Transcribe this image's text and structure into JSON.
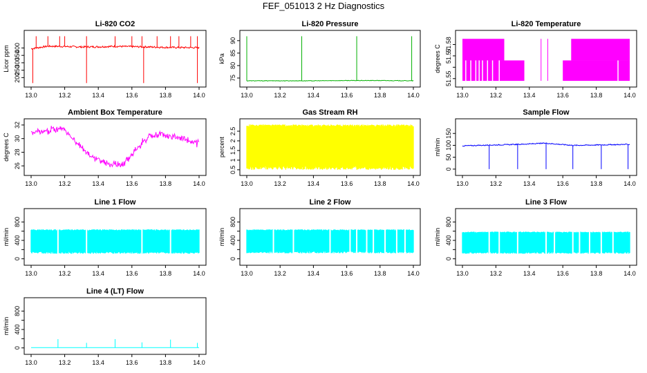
{
  "figure_title": "FEF_051013  2 Hz Diagnostics",
  "chart_data": [
    {
      "id": "co2",
      "type": "line",
      "title": "Li-820 CO2",
      "ylabel": "Licor ppm",
      "color": "#ff0000",
      "xlim": [
        13.0,
        14.0
      ],
      "ylim": [
        155,
        500
      ],
      "x_ticks": [
        "13.0",
        "13.2",
        "13.4",
        "13.6",
        "13.8",
        "14.0"
      ],
      "y_ticks": [
        200,
        250,
        300,
        350,
        400
      ],
      "series": [
        {
          "name": "",
          "x": [
            13.0,
            13.1,
            13.2,
            13.3,
            13.4,
            13.5,
            13.6,
            13.7,
            13.8,
            13.9,
            14.0
          ],
          "values": [
            395,
            412,
            410,
            407,
            408,
            411,
            409,
            407,
            404,
            403,
            402
          ]
        }
      ],
      "spikes_up": [
        13.03,
        13.1,
        13.17,
        13.2,
        13.33,
        13.5,
        13.6,
        13.66,
        13.75,
        13.83,
        13.88,
        13.95,
        13.99
      ],
      "spikes_down": [
        13.01,
        13.33,
        13.67,
        13.99
      ]
    },
    {
      "id": "pressure",
      "type": "line",
      "title": "Li-820 Pressure",
      "ylabel": "kPa",
      "color": "#00b000",
      "xlim": [
        13.0,
        14.0
      ],
      "ylim": [
        72.5,
        93
      ],
      "x_ticks": [
        "13.0",
        "13.2",
        "13.4",
        "13.6",
        "13.8",
        "14.0"
      ],
      "y_ticks": [
        75,
        80,
        85,
        90
      ],
      "series": [
        {
          "name": "",
          "x": [
            13.0,
            13.2,
            13.4,
            13.6,
            13.8,
            14.0
          ],
          "values": [
            73.9,
            73.9,
            73.9,
            74.0,
            74.0,
            73.9
          ]
        }
      ],
      "spikes_up": [
        13.0,
        13.33,
        13.66,
        13.99
      ]
    },
    {
      "id": "temp",
      "type": "line",
      "title": "Li-820 Temperature",
      "ylabel": "degrees C",
      "color": "#ff00ff",
      "xlim": [
        13.0,
        14.0
      ],
      "ylim": [
        51.545,
        51.59
      ],
      "x_ticks": [
        "13.0",
        "13.2",
        "13.4",
        "13.6",
        "13.8",
        "14.0"
      ],
      "y_ticks": [
        51.55,
        51.56,
        51.57,
        51.58
      ],
      "y_tick_labels": [
        "51.55",
        "",
        "51.57",
        "51.58"
      ],
      "band_hi": [
        [
          13.0,
          13.25
        ],
        [
          13.65,
          14.0
        ]
      ],
      "band_lo": [
        [
          13.0,
          13.37
        ],
        [
          13.6,
          14.0
        ]
      ]
    },
    {
      "id": "ambient",
      "type": "line",
      "title": "Ambient Box Temperature",
      "ylabel": "degrees C",
      "color": "#ff00ff",
      "xlim": [
        13.0,
        14.0
      ],
      "ylim": [
        25.0,
        32.5
      ],
      "x_ticks": [
        "13.0",
        "13.2",
        "13.4",
        "13.6",
        "13.8",
        "14.0"
      ],
      "y_ticks": [
        26,
        28,
        30,
        32
      ],
      "series": [
        {
          "name": "",
          "x": [
            13.0,
            13.1,
            13.18,
            13.25,
            13.35,
            13.45,
            13.55,
            13.62,
            13.7,
            13.78,
            13.9,
            14.0
          ],
          "values": [
            31.3,
            31.4,
            31.9,
            30.3,
            27.8,
            26.6,
            26.5,
            28.7,
            30.6,
            30.9,
            30.3,
            29.5
          ]
        }
      ]
    },
    {
      "id": "rh",
      "type": "line",
      "title": "Gas Stream RH",
      "ylabel": "percent",
      "color": "#ffff00",
      "xlim": [
        13.0,
        14.0
      ],
      "ylim": [
        0.35,
        3.0
      ],
      "x_ticks": [
        "13.0",
        "13.2",
        "13.4",
        "13.6",
        "13.8",
        "14.0"
      ],
      "y_ticks": [
        0.5,
        1.0,
        1.5,
        2.0,
        2.5
      ],
      "y_tick_labels": [
        "0.5",
        "1",
        "1.5",
        "2",
        "2.5"
      ],
      "band": [
        0.5,
        2.85
      ]
    },
    {
      "id": "sample",
      "type": "line",
      "title": "Sample Flow",
      "ylabel": "ml/min",
      "color": "#0000ff",
      "xlim": [
        13.0,
        14.0
      ],
      "ylim": [
        -15,
        200
      ],
      "x_ticks": [
        "13.0",
        "13.2",
        "13.4",
        "13.6",
        "13.8",
        "14.0"
      ],
      "y_ticks": [
        0,
        50,
        100,
        150
      ],
      "series": [
        {
          "name": "",
          "x": [
            13.0,
            13.16,
            13.33,
            13.5,
            13.66,
            13.83,
            14.0
          ],
          "values": [
            98,
            101,
            104,
            109,
            100,
            102,
            104
          ]
        }
      ],
      "dips": [
        13.16,
        13.33,
        13.5,
        13.66,
        13.83,
        13.99
      ]
    },
    {
      "id": "line1",
      "type": "line",
      "title": "Line 1 Flow",
      "ylabel": "ml/min",
      "color": "#00ffff",
      "xlim": [
        13.0,
        14.0
      ],
      "ylim": [
        -80,
        1030
      ],
      "x_ticks": [
        "13.0",
        "13.2",
        "13.4",
        "13.6",
        "13.8",
        "14.0"
      ],
      "y_ticks": [
        0,
        200,
        400,
        600,
        800
      ],
      "y_tick_labels": [
        "0",
        "",
        "400",
        "",
        "800"
      ],
      "band": [
        110,
        640
      ],
      "gaps": [
        13.16,
        13.33,
        13.66,
        13.83
      ]
    },
    {
      "id": "line2",
      "type": "line",
      "title": "Line 2 Flow",
      "ylabel": "ml/min",
      "color": "#00ffff",
      "xlim": [
        13.0,
        14.0
      ],
      "ylim": [
        -80,
        1030
      ],
      "x_ticks": [
        "13.0",
        "13.2",
        "13.4",
        "13.6",
        "13.8",
        "14.0"
      ],
      "y_ticks": [
        0,
        200,
        400,
        600,
        800
      ],
      "y_tick_labels": [
        "0",
        "",
        "400",
        "",
        "800"
      ],
      "band": [
        120,
        640
      ],
      "gaps": [
        13.16,
        13.28,
        13.5,
        13.62,
        13.66,
        13.72,
        13.76,
        13.83,
        13.9,
        13.95
      ]
    },
    {
      "id": "line3",
      "type": "line",
      "title": "Line 3 Flow",
      "ylabel": "ml/min",
      "color": "#00ffff",
      "xlim": [
        13.0,
        14.0
      ],
      "ylim": [
        -80,
        1030
      ],
      "x_ticks": [
        "13.0",
        "13.2",
        "13.4",
        "13.6",
        "13.8",
        "14.0"
      ],
      "y_ticks": [
        0,
        200,
        400,
        600,
        800
      ],
      "y_tick_labels": [
        "0",
        "",
        "400",
        "",
        "800"
      ],
      "band": [
        110,
        590
      ],
      "gaps": [
        13.16,
        13.22,
        13.33,
        13.5,
        13.55,
        13.66,
        13.7,
        13.76,
        13.83,
        13.9
      ]
    },
    {
      "id": "line4",
      "type": "line",
      "title": "Line 4 (LT) Flow",
      "ylabel": "ml/min",
      "color": "#00ffff",
      "xlim": [
        13.0,
        14.0
      ],
      "ylim": [
        -80,
        1030
      ],
      "x_ticks": [
        "13.0",
        "13.2",
        "13.4",
        "13.6",
        "13.8",
        "14.0"
      ],
      "y_ticks": [
        0,
        200,
        400,
        600,
        800
      ],
      "y_tick_labels": [
        "0",
        "",
        "400",
        "",
        "800"
      ],
      "series": [
        {
          "name": "",
          "x": [
            13.0,
            14.0
          ],
          "values": [
            5,
            5
          ]
        }
      ],
      "spikes_up": [
        [
          13.16,
          190
        ],
        [
          13.33,
          110
        ],
        [
          13.5,
          190
        ],
        [
          13.66,
          120
        ],
        [
          13.83,
          180
        ],
        [
          13.99,
          110
        ]
      ]
    }
  ]
}
